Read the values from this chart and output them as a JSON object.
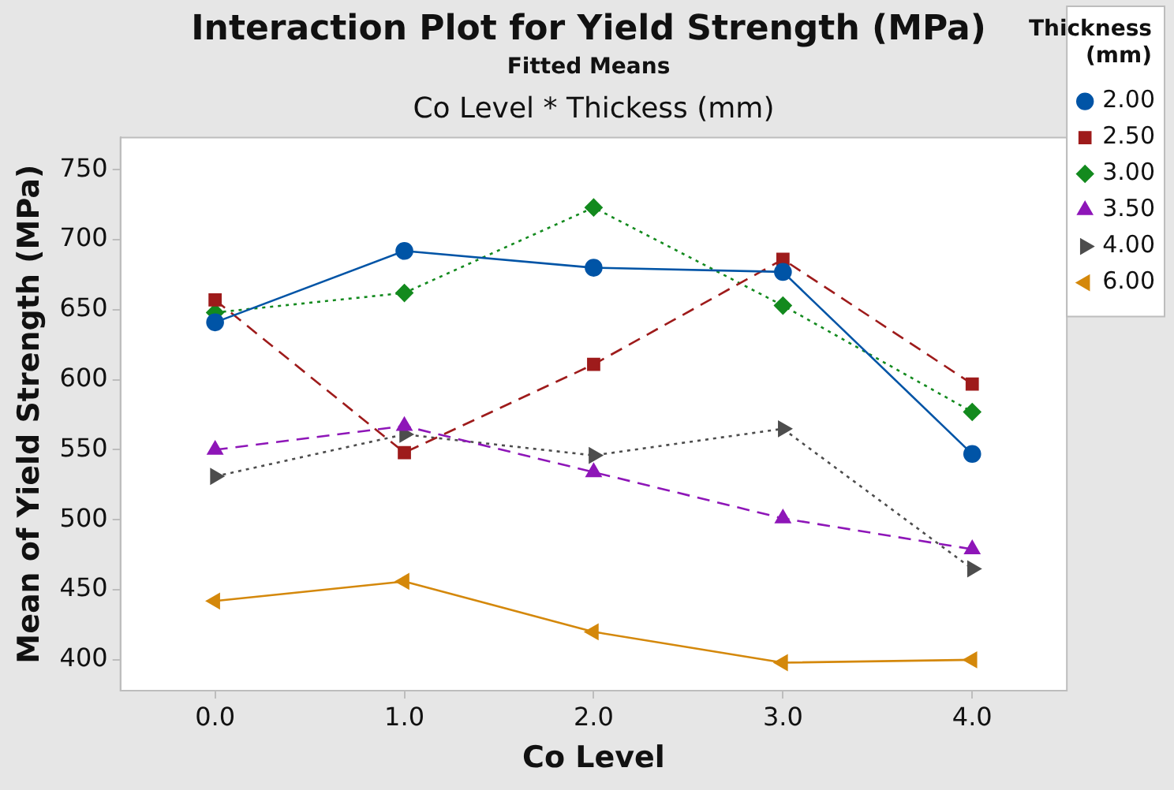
{
  "chart_data": {
    "type": "line",
    "title": "Interaction Plot for Yield Strength (MPa)",
    "subtitle": "Fitted Means",
    "annotations": [
      "Co Level * Thickess (mm)"
    ],
    "xlabel": "Co Level",
    "ylabel": "Mean of Yield Strength (MPa)",
    "legend_title": "Thickness (mm)",
    "legend": "right",
    "grid": false,
    "x": [
      0,
      1,
      2,
      3,
      4
    ],
    "xlim": [
      -0.5,
      4.5
    ],
    "xticks": [
      {
        "value": 0,
        "label": "0.0"
      },
      {
        "value": 1,
        "label": "1.0"
      },
      {
        "value": 2,
        "label": "2.0"
      },
      {
        "value": 3,
        "label": "3.0"
      },
      {
        "value": 4,
        "label": "4.0"
      }
    ],
    "ylim": [
      378,
      773
    ],
    "yticks": [
      400,
      450,
      500,
      550,
      600,
      650,
      700,
      750
    ],
    "series": [
      {
        "name": "2.00",
        "color": "#0054a6",
        "marker": "circle",
        "line_style": "solid",
        "values": [
          641,
          692,
          680,
          677,
          547
        ]
      },
      {
        "name": "2.50",
        "color": "#9e1b1b",
        "marker": "square",
        "line_style": "dashed",
        "values": [
          657,
          548,
          611,
          686,
          597
        ]
      },
      {
        "name": "3.00",
        "color": "#138a1e",
        "marker": "diamond",
        "line_style": "dotted",
        "values": [
          648,
          662,
          723,
          653,
          577
        ]
      },
      {
        "name": "3.50",
        "color": "#8e16b8",
        "marker": "triangle",
        "line_style": "dashed",
        "values": [
          550,
          567,
          534,
          501,
          479
        ]
      },
      {
        "name": "4.00",
        "color": "#4d4d4d",
        "marker": "triangle-right",
        "line_style": "dotted",
        "values": [
          531,
          561,
          546,
          565,
          465
        ]
      },
      {
        "name": "6.00",
        "color": "#d4880b",
        "marker": "triangle-left",
        "line_style": "solid",
        "values": [
          442,
          456,
          420,
          398,
          400
        ]
      }
    ]
  }
}
